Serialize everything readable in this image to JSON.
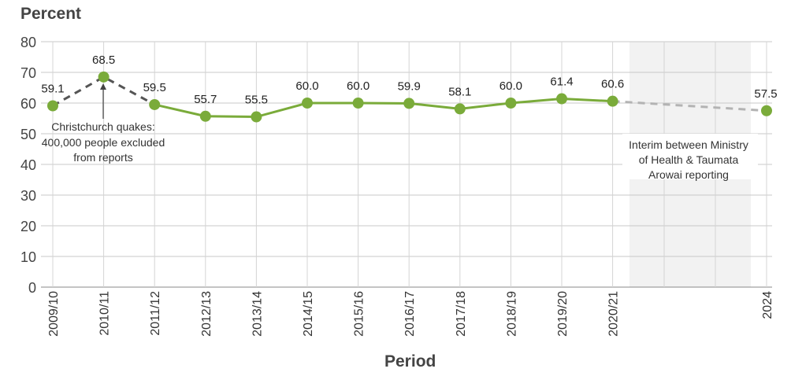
{
  "chart_data": {
    "type": "line",
    "title": "",
    "ylabel": "Percent",
    "xlabel": "Period",
    "ylim": [
      0,
      80
    ],
    "yticks": [
      0,
      10,
      20,
      30,
      40,
      50,
      60,
      70,
      80
    ],
    "grid": "horizontal",
    "categories": [
      "2009/10",
      "2010/11",
      "2011/12",
      "2012/13",
      "2013/14",
      "2014/15",
      "2015/16",
      "2016/17",
      "2017/18",
      "2018/19",
      "2019/20",
      "2020/21",
      "2024"
    ],
    "values": [
      59.1,
      68.5,
      59.5,
      55.7,
      55.5,
      60.0,
      60.0,
      59.9,
      58.1,
      60.0,
      61.4,
      60.6,
      57.5
    ],
    "value_labels": [
      "59.1",
      "68.5",
      "59.5",
      "55.7",
      "55.5",
      "60.0",
      "60.0",
      "59.9",
      "58.1",
      "60.0",
      "61.4",
      "60.6",
      "57.5"
    ],
    "series_color": "#7aab3a",
    "dashed_color_quakes": "#555555",
    "dashed_color_interim": "#b3b3b3",
    "shade_color": "#f2f2f2",
    "annotations": {
      "quakes": [
        "Christchurch quakes:",
        "400,000 people excluded",
        "from reports"
      ],
      "interim": [
        "Interim between Ministry",
        "of Health & Taumata",
        "Arowai reporting"
      ]
    }
  }
}
